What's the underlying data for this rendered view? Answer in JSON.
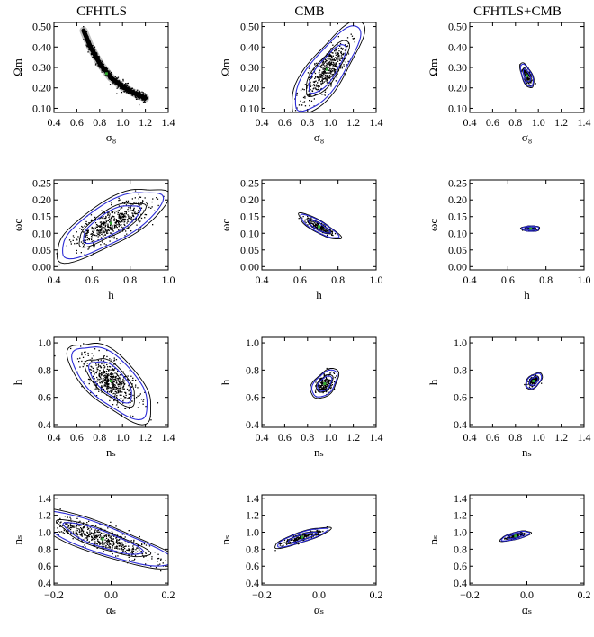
{
  "figure": {
    "column_titles": [
      "CFHTLS",
      "CMB",
      "CFHTLS+CMB"
    ]
  },
  "colors": {
    "inner_contour": "#2b2bd6",
    "outer_contour": "#000000",
    "samples": "#000000",
    "best_fit": "#33aa33"
  },
  "chart_data": [
    {
      "type": "scatter",
      "row": 0,
      "col": 0,
      "xlabel": "σ₈",
      "ylabel": "Ωm",
      "xlim": [
        0.4,
        1.4
      ],
      "ylim": [
        0.08,
        0.52
      ],
      "xticks": [
        0.4,
        0.6,
        0.8,
        1.0,
        1.2,
        1.4
      ],
      "xtick_labels": [
        "0.4",
        "0.6",
        "0.8",
        "1.0",
        "1.2",
        "1.4"
      ],
      "yticks": [
        0.1,
        0.2,
        0.3,
        0.4,
        0.5
      ],
      "ytick_labels": [
        "0.10",
        "0.20",
        "0.30",
        "0.40",
        "0.50"
      ],
      "region": {
        "kind": "curve",
        "points": [
          [
            0.66,
            0.48
          ],
          [
            0.72,
            0.4
          ],
          [
            0.8,
            0.32
          ],
          [
            0.9,
            0.25
          ],
          [
            1.0,
            0.205
          ],
          [
            1.1,
            0.175
          ],
          [
            1.2,
            0.15
          ]
        ],
        "width": 0.012
      }
    },
    {
      "type": "scatter",
      "row": 0,
      "col": 1,
      "xlabel": "σ₈",
      "ylabel": "Ωm",
      "xlim": [
        0.4,
        1.4
      ],
      "ylim": [
        0.08,
        0.52
      ],
      "xticks": [
        0.4,
        0.6,
        0.8,
        1.0,
        1.2,
        1.4
      ],
      "xtick_labels": [
        "0.4",
        "0.6",
        "0.8",
        "1.0",
        "1.2",
        "1.4"
      ],
      "yticks": [
        0.1,
        0.2,
        0.3,
        0.4,
        0.5
      ],
      "ytick_labels": [
        "0.10",
        "0.20",
        "0.30",
        "0.40",
        "0.50"
      ],
      "region": {
        "kind": "ellipse",
        "cx": 0.97,
        "cy": 0.29,
        "sx": 0.13,
        "sy": 0.095,
        "rho": 0.8
      }
    },
    {
      "type": "scatter",
      "row": 0,
      "col": 2,
      "xlabel": "σ₈",
      "ylabel": "Ωm",
      "xlim": [
        0.4,
        1.4
      ],
      "ylim": [
        0.08,
        0.52
      ],
      "xticks": [
        0.4,
        0.6,
        0.8,
        1.0,
        1.2,
        1.4
      ],
      "xtick_labels": [
        "0.4",
        "0.6",
        "0.8",
        "1.0",
        "1.2",
        "1.4"
      ],
      "yticks": [
        0.1,
        0.2,
        0.3,
        0.4,
        0.5
      ],
      "ytick_labels": [
        "0.10",
        "0.20",
        "0.30",
        "0.40",
        "0.50"
      ],
      "region": {
        "kind": "ellipse",
        "cx": 0.9,
        "cy": 0.26,
        "sx": 0.025,
        "sy": 0.025,
        "rho": -0.6
      }
    },
    {
      "type": "scatter",
      "row": 1,
      "col": 0,
      "xlabel": "h",
      "ylabel": "ωc",
      "xlim": [
        0.4,
        1.0
      ],
      "ylim": [
        -0.01,
        0.26
      ],
      "xticks": [
        0.4,
        0.6,
        0.8,
        1.0
      ],
      "xtick_labels": [
        "0.4",
        "0.6",
        "0.8",
        "1.0"
      ],
      "yticks": [
        0.0,
        0.05,
        0.1,
        0.15,
        0.2,
        0.25
      ],
      "ytick_labels": [
        "0.00",
        "0.05",
        "0.10",
        "0.15",
        "0.20",
        "0.25"
      ],
      "region": {
        "kind": "ellipse",
        "cx": 0.7,
        "cy": 0.13,
        "sx": 0.12,
        "sy": 0.045,
        "rho": 0.75
      }
    },
    {
      "type": "scatter",
      "row": 1,
      "col": 1,
      "xlabel": "h",
      "ylabel": "ωc",
      "xlim": [
        0.4,
        1.0
      ],
      "ylim": [
        -0.01,
        0.26
      ],
      "xticks": [
        0.4,
        0.6,
        0.8,
        1.0
      ],
      "xtick_labels": [
        "0.4",
        "0.6",
        "0.8",
        "1.0"
      ],
      "yticks": [
        0.0,
        0.05,
        0.1,
        0.15,
        0.2,
        0.25
      ],
      "ytick_labels": [
        "0.00",
        "0.05",
        "0.10",
        "0.15",
        "0.20",
        "0.25"
      ],
      "region": {
        "kind": "ellipse",
        "cx": 0.7,
        "cy": 0.12,
        "sx": 0.045,
        "sy": 0.016,
        "rho": -0.85
      }
    },
    {
      "type": "scatter",
      "row": 1,
      "col": 2,
      "xlabel": "h",
      "ylabel": "ωc",
      "xlim": [
        0.4,
        1.0
      ],
      "ylim": [
        -0.01,
        0.26
      ],
      "xticks": [
        0.4,
        0.6,
        0.8,
        1.0
      ],
      "xtick_labels": [
        "0.4",
        "0.6",
        "0.8",
        "1.0"
      ],
      "yticks": [
        0.0,
        0.05,
        0.1,
        0.15,
        0.2,
        0.25
      ],
      "ytick_labels": [
        "0.00",
        "0.05",
        "0.10",
        "0.15",
        "0.20",
        "0.25"
      ],
      "region": {
        "kind": "ellipse",
        "cx": 0.72,
        "cy": 0.114,
        "sx": 0.02,
        "sy": 0.0035,
        "rho": 0.0
      }
    },
    {
      "type": "scatter",
      "row": 2,
      "col": 0,
      "xlabel": "nₛ",
      "ylabel": "h",
      "xlim": [
        0.4,
        1.4
      ],
      "ylim": [
        0.38,
        1.04
      ],
      "xticks": [
        0.4,
        0.6,
        0.8,
        1.0,
        1.2,
        1.4
      ],
      "xtick_labels": [
        "0.4",
        "0.6",
        "0.8",
        "1.0",
        "1.2",
        "1.4"
      ],
      "yticks": [
        0.4,
        0.6,
        0.8,
        1.0
      ],
      "ytick_labels": [
        "0.4",
        "0.6",
        "0.8",
        "1.0"
      ],
      "region": {
        "kind": "ellipse",
        "cx": 0.9,
        "cy": 0.72,
        "sx": 0.15,
        "sy": 0.12,
        "rho": -0.65
      }
    },
    {
      "type": "scatter",
      "row": 2,
      "col": 1,
      "xlabel": "nₛ",
      "ylabel": "h",
      "xlim": [
        0.4,
        1.4
      ],
      "ylim": [
        0.38,
        1.04
      ],
      "xticks": [
        0.4,
        0.6,
        0.8,
        1.0,
        1.2,
        1.4
      ],
      "xtick_labels": [
        "0.4",
        "0.6",
        "0.8",
        "1.0",
        "1.2",
        "1.4"
      ],
      "yticks": [
        0.4,
        0.6,
        0.8,
        1.0
      ],
      "ytick_labels": [
        "0.4",
        "0.6",
        "0.8",
        "1.0"
      ],
      "region": {
        "kind": "ellipse",
        "cx": 0.95,
        "cy": 0.7,
        "sx": 0.05,
        "sy": 0.045,
        "rho": 0.5
      }
    },
    {
      "type": "scatter",
      "row": 2,
      "col": 2,
      "xlabel": "nₛ",
      "ylabel": "h",
      "xlim": [
        0.4,
        1.4
      ],
      "ylim": [
        0.38,
        1.04
      ],
      "xticks": [
        0.4,
        0.6,
        0.8,
        1.0,
        1.2,
        1.4
      ],
      "xtick_labels": [
        "0.4",
        "0.6",
        "0.8",
        "1.0",
        "1.2",
        "1.4"
      ],
      "yticks": [
        0.4,
        0.6,
        0.8,
        1.0
      ],
      "ytick_labels": [
        "0.4",
        "0.6",
        "0.8",
        "1.0"
      ],
      "region": {
        "kind": "ellipse",
        "cx": 0.96,
        "cy": 0.72,
        "sx": 0.03,
        "sy": 0.025,
        "rho": 0.5
      }
    },
    {
      "type": "scatter",
      "row": 3,
      "col": 0,
      "xlabel": "αₛ",
      "ylabel": "nₛ",
      "xlim": [
        -0.2,
        0.2
      ],
      "ylim": [
        0.38,
        1.44
      ],
      "xticks": [
        -0.2,
        0.0,
        0.2
      ],
      "xtick_labels": [
        "−0.2",
        "0.0",
        "0.2"
      ],
      "yticks": [
        0.4,
        0.6,
        0.8,
        1.0,
        1.2,
        1.4
      ],
      "ytick_labels": [
        "0.4",
        "0.6",
        "0.8",
        "1.0",
        "1.2",
        "1.4"
      ],
      "region": {
        "kind": "ellipse",
        "cx": -0.03,
        "cy": 0.92,
        "sx": 0.11,
        "sy": 0.15,
        "rho": -0.85
      }
    },
    {
      "type": "scatter",
      "row": 3,
      "col": 1,
      "xlabel": "αₛ",
      "ylabel": "nₛ",
      "xlim": [
        -0.2,
        0.2
      ],
      "ylim": [
        0.38,
        1.44
      ],
      "xticks": [
        -0.2,
        0.0,
        0.2
      ],
      "xtick_labels": [
        "−0.2",
        "0.0",
        "0.2"
      ],
      "yticks": [
        0.4,
        0.6,
        0.8,
        1.0,
        1.2,
        1.4
      ],
      "ytick_labels": [
        "0.4",
        "0.6",
        "0.8",
        "1.0",
        "1.2",
        "1.4"
      ],
      "region": {
        "kind": "ellipse",
        "cx": -0.06,
        "cy": 0.94,
        "sx": 0.04,
        "sy": 0.05,
        "rho": 0.85
      }
    },
    {
      "type": "scatter",
      "row": 3,
      "col": 2,
      "xlabel": "αₛ",
      "ylabel": "nₛ",
      "xlim": [
        -0.2,
        0.2
      ],
      "ylim": [
        0.38,
        1.44
      ],
      "xticks": [
        -0.2,
        0.0,
        0.2
      ],
      "xtick_labels": [
        "−0.2",
        "0.0",
        "0.2"
      ],
      "yticks": [
        0.4,
        0.6,
        0.8,
        1.0,
        1.2,
        1.4
      ],
      "ytick_labels": [
        "0.4",
        "0.6",
        "0.8",
        "1.0",
        "1.2",
        "1.4"
      ],
      "region": {
        "kind": "ellipse",
        "cx": -0.04,
        "cy": 0.955,
        "sx": 0.022,
        "sy": 0.025,
        "rho": 0.7
      }
    }
  ]
}
